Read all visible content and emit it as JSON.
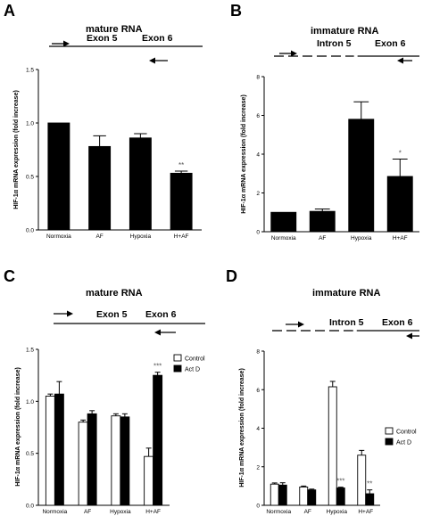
{
  "panels": [
    {
      "letter": "A",
      "title": "mature RNA",
      "labels": [
        {
          "text": "Exon 5"
        },
        {
          "text": "Exon 6"
        }
      ]
    },
    {
      "letter": "B",
      "title": "immature RNA",
      "labels": [
        {
          "text": "Intron 5"
        },
        {
          "text": "Exon 6"
        }
      ]
    },
    {
      "letter": "C",
      "title": "mature RNA",
      "labels": [
        {
          "text": "Exon 5"
        },
        {
          "text": "Exon 6"
        }
      ]
    },
    {
      "letter": "D",
      "title": "immature RNA",
      "labels": [
        {
          "text": "Intron 5"
        },
        {
          "text": "Exon 6"
        }
      ]
    }
  ],
  "chart_data": [
    {
      "type": "bar",
      "title": "",
      "ylabel": "HIF-1α mRNA expression (fold increase)",
      "xlabel": "",
      "ylim": [
        0,
        1.5
      ],
      "yticks": [
        "0.0",
        "0.5",
        "1.0",
        "1.5"
      ],
      "categories": [
        "Normoxia",
        "AF",
        "Hypoxia",
        "H+AF"
      ],
      "series": [
        {
          "values": [
            1.0,
            0.78,
            0.86,
            0.53
          ],
          "errors": [
            0.0,
            0.1,
            0.04,
            0.02
          ],
          "fill": "#000000"
        }
      ],
      "annotations": [
        {
          "series": 0,
          "index": 3,
          "text": "**"
        }
      ]
    },
    {
      "type": "bar",
      "title": "",
      "ylabel": "HIF-1α mRNA expression (fold increase)",
      "xlabel": "",
      "ylim": [
        0,
        8
      ],
      "yticks": [
        "0",
        "2",
        "4",
        "6",
        "8"
      ],
      "categories": [
        "Normoxia",
        "AF",
        "Hypoxia",
        "H+AF"
      ],
      "series": [
        {
          "values": [
            1.0,
            1.05,
            5.8,
            2.85
          ],
          "errors": [
            0.0,
            0.12,
            0.9,
            0.9
          ],
          "fill": "#000000"
        }
      ],
      "annotations": [
        {
          "series": 0,
          "index": 3,
          "text": "*"
        }
      ]
    },
    {
      "type": "bar",
      "title": "",
      "ylabel": "HIF-1α mRNA expression (fold increase)",
      "xlabel": "",
      "ylim": [
        0,
        1.5
      ],
      "yticks": [
        "0.0",
        "0.5",
        "1.0",
        "1.5"
      ],
      "categories": [
        "Normoxia",
        "AF",
        "Hypoxia",
        "H+AF"
      ],
      "series": [
        {
          "name": "Control",
          "values": [
            1.05,
            0.8,
            0.86,
            0.47
          ],
          "errors": [
            0.02,
            0.02,
            0.02,
            0.08
          ],
          "fill": "#ffffff"
        },
        {
          "name": "Act D",
          "values": [
            1.07,
            0.88,
            0.85,
            1.25
          ],
          "errors": [
            0.12,
            0.03,
            0.03,
            0.03
          ],
          "fill": "#000000"
        }
      ],
      "annotations": [
        {
          "series": 1,
          "index": 3,
          "text": "***"
        }
      ],
      "legend": "right"
    },
    {
      "type": "bar",
      "title": "",
      "ylabel": "HIF-1α mRNA expression (fold increase)",
      "xlabel": "",
      "ylim": [
        0,
        8
      ],
      "yticks": [
        "0",
        "2",
        "4",
        "6",
        "8"
      ],
      "categories": [
        "Normoxia",
        "AF",
        "Hypoxia",
        "H+AF"
      ],
      "series": [
        {
          "name": "Control",
          "values": [
            1.1,
            0.95,
            6.15,
            2.6
          ],
          "errors": [
            0.06,
            0.05,
            0.28,
            0.25
          ],
          "fill": "#ffffff"
        },
        {
          "name": "Act D",
          "values": [
            1.05,
            0.8,
            0.9,
            0.6
          ],
          "errors": [
            0.12,
            0.04,
            0.04,
            0.2
          ],
          "fill": "#000000"
        }
      ],
      "annotations": [
        {
          "series": 1,
          "index": 2,
          "text": "***"
        },
        {
          "series": 1,
          "index": 3,
          "text": "**"
        }
      ],
      "legend": "right"
    }
  ]
}
